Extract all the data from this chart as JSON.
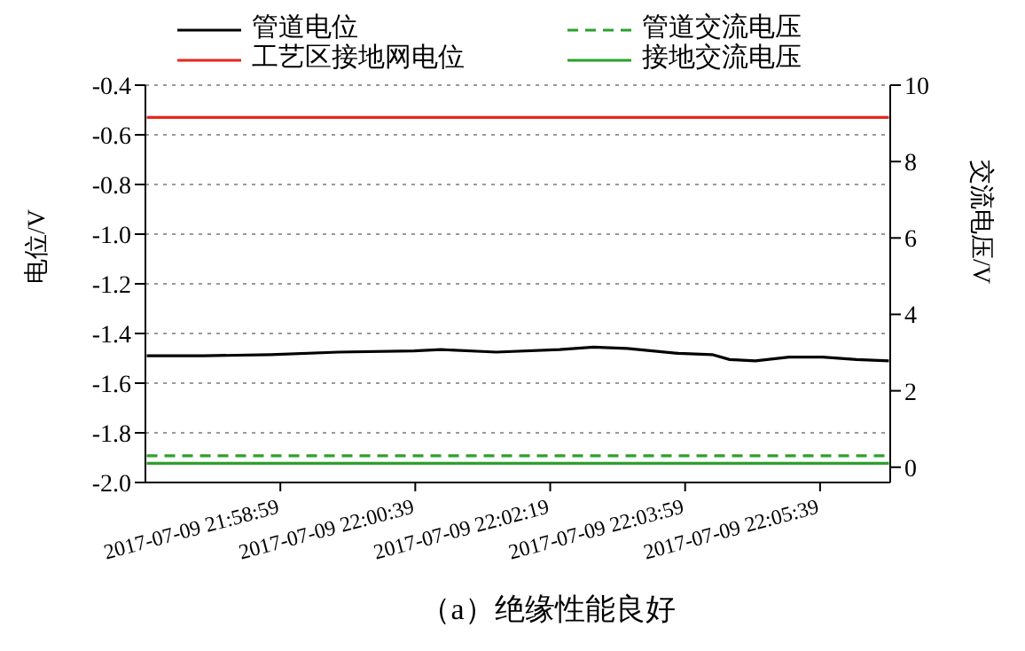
{
  "chart_data": {
    "type": "line",
    "title": "（a）绝缘性能良好",
    "ylabel": "电位/V",
    "y2label": "交流电压/V",
    "xlim": [
      "2017-07-09T21:57:19",
      "2017-07-09T22:06:31"
    ],
    "xticks": [
      {
        "value": "2017-07-09T21:58:59",
        "label": "2017-07-09 21:58:59"
      },
      {
        "value": "2017-07-09T22:00:39",
        "label": "2017-07-09 22:00:39"
      },
      {
        "value": "2017-07-09T22:02:19",
        "label": "2017-07-09 22:02:19"
      },
      {
        "value": "2017-07-09T22:03:59",
        "label": "2017-07-09 22:03:59"
      },
      {
        "value": "2017-07-09T22:05:39",
        "label": "2017-07-09 22:05:39"
      }
    ],
    "ylim": [
      -2.0,
      -0.4
    ],
    "yticks": [
      {
        "value": -2.0,
        "label": "-2.0"
      },
      -1.8,
      -1.6,
      -1.4,
      -1.2,
      {
        "value": -1.0,
        "label": "-1.0"
      },
      -0.8,
      -0.6,
      -0.4
    ],
    "y2lim": [
      -0.4,
      10
    ],
    "y2ticks": [
      0,
      2,
      4,
      6,
      8,
      10
    ],
    "grid": "y",
    "legend": "top",
    "marker": "none",
    "series": [
      {
        "name": "管道电位",
        "color": "#000000",
        "x": [
          "2017-07-09T21:57:20",
          "2017-07-09T21:58:02",
          "2017-07-09T21:58:52",
          "2017-07-09T21:59:42",
          "2017-07-09T22:00:38",
          "2017-07-09T22:00:58",
          "2017-07-09T22:01:39",
          "2017-07-09T22:02:26",
          "2017-07-09T22:02:51",
          "2017-07-09T22:03:16",
          "2017-07-09T22:03:54",
          "2017-07-09T22:04:19",
          "2017-07-09T22:04:32",
          "2017-07-09T22:04:51",
          "2017-07-09T22:05:16",
          "2017-07-09T22:05:41",
          "2017-07-09T22:06:06",
          "2017-07-09T22:06:30"
        ],
        "values": [
          -1.49,
          -1.49,
          -1.485,
          -1.475,
          -1.47,
          -1.465,
          -1.475,
          -1.465,
          -1.455,
          -1.46,
          -1.48,
          -1.485,
          -1.505,
          -1.51,
          -1.495,
          -1.495,
          -1.505,
          -1.51
        ]
      },
      {
        "name": "工艺区接地网电位",
        "color": "#e8261c",
        "x": [
          "2017-07-09T21:57:20",
          "2017-07-09T22:06:30"
        ],
        "values": [
          -0.53,
          -0.53
        ]
      },
      {
        "name": "管道交流电压",
        "color": "#2ca02c",
        "axis": "y2",
        "line_style": "dashed",
        "x": [
          "2017-07-09T21:57:20",
          "2017-07-09T22:06:30"
        ],
        "values": [
          0.3,
          0.3
        ]
      },
      {
        "name": "接地交流电压",
        "color": "#2ca02c",
        "axis": "y2",
        "x": [
          "2017-07-09T21:57:20",
          "2017-07-09T22:06:30"
        ],
        "values": [
          0.1,
          0.1
        ]
      }
    ]
  }
}
